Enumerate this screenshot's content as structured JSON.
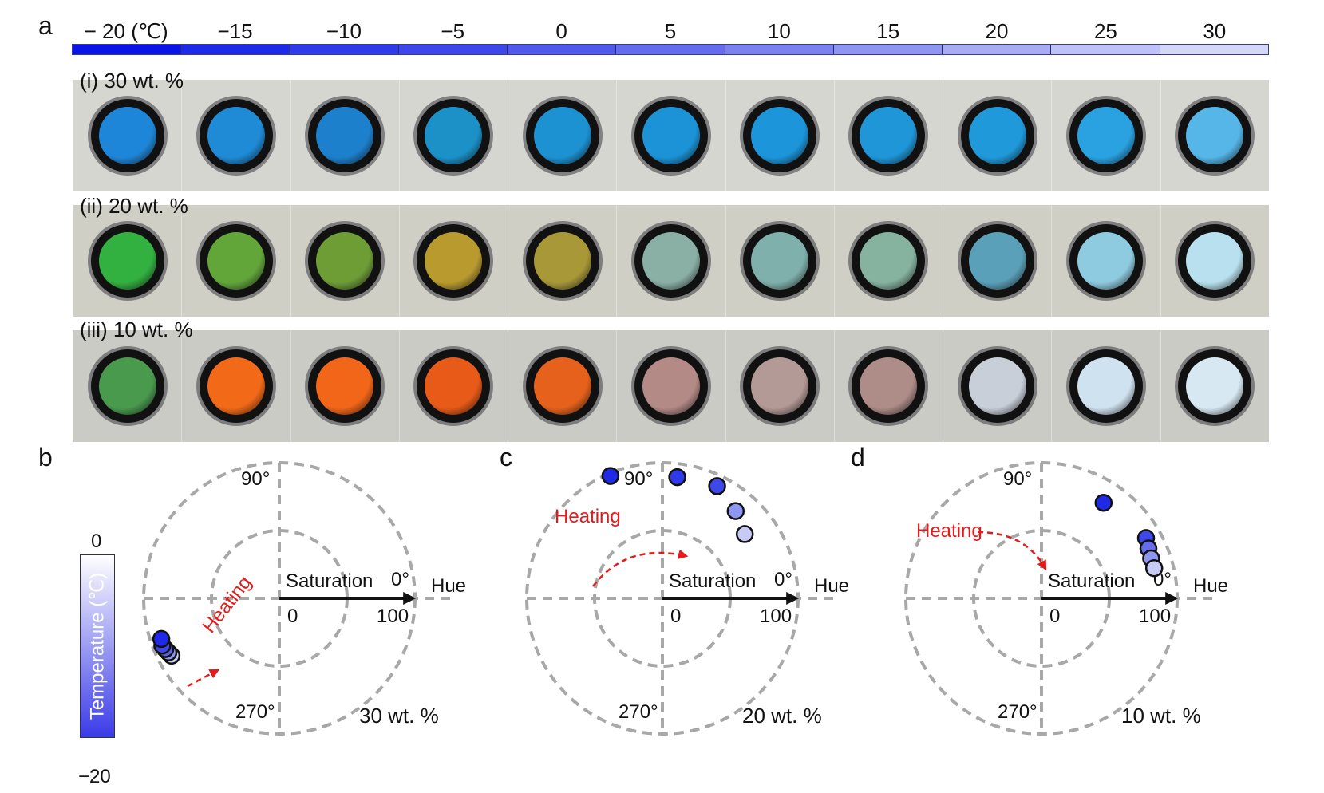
{
  "figure": {
    "panel_letters": {
      "a": "a",
      "b": "b",
      "c": "c",
      "d": "d"
    },
    "temperature_bar": {
      "labels": [
        "− 20 (℃)",
        "−15",
        "−10",
        "−5",
        "0",
        "5",
        "10",
        "15",
        "20",
        "25",
        "30"
      ],
      "colors": [
        "#0a14e6",
        "#1f2ae8",
        "#2f3ae9",
        "#3e48ea",
        "#5059ec",
        "#656dee",
        "#7a82f0",
        "#8f96f2",
        "#a7acf4",
        "#bec2f7",
        "#d4d7fa"
      ]
    },
    "rows": [
      {
        "label": "(i) 30 wt. %",
        "background": "#d6d6d0",
        "sample_colors": [
          "#1e86d8",
          "#1f8ad6",
          "#1d80cc",
          "#1c91c8",
          "#1d92d2",
          "#1b93d6",
          "#1c95da",
          "#1f96d8",
          "#2099da",
          "#2aa2e2",
          "#56b6e8"
        ]
      },
      {
        "label": "(ii) 20 wt. %",
        "background": "#cfcfc6",
        "sample_colors": [
          "#32b040",
          "#62a63a",
          "#6e9d36",
          "#b89a2e",
          "#a89838",
          "#8ab0a6",
          "#80b0ac",
          "#86b2a0",
          "#5aa0b8",
          "#8ecae0",
          "#b8e0ee"
        ]
      },
      {
        "label": "(iii) 10 wt. %",
        "background": "#c9cbc4",
        "sample_colors": [
          "#4a9a4e",
          "#f26a18",
          "#f2661a",
          "#e85a18",
          "#e6621c",
          "#b48a86",
          "#b49a96",
          "#ae8c88",
          "#c8cfd8",
          "#cfe2f0",
          "#d8e8f2"
        ]
      }
    ],
    "polar_plots": [
      {
        "concentration_label": "30 wt. %",
        "angle_90": "90°",
        "angle_0": "0°",
        "angle_270": "270°",
        "axis_label_saturation": "Saturation",
        "axis_label_hue": "Hue",
        "tick_0": "0",
        "tick_100": "100",
        "arrow_label": "Heating",
        "points": [
          {
            "hue_deg": 208,
            "saturation": 90,
            "color": "#c8caf6"
          },
          {
            "hue_deg": 206,
            "saturation": 91,
            "color": "#8f96f2"
          },
          {
            "hue_deg": 204,
            "saturation": 92,
            "color": "#5a62ec"
          },
          {
            "hue_deg": 202,
            "saturation": 93,
            "color": "#3e48ea"
          },
          {
            "hue_deg": 199,
            "saturation": 92,
            "color": "#1f2ae8"
          }
        ]
      },
      {
        "concentration_label": "20 wt. %",
        "angle_90": "90°",
        "angle_0": "0°",
        "angle_270": "270°",
        "axis_label_saturation": "Saturation",
        "axis_label_hue": "Hue",
        "tick_0": "0",
        "tick_100": "100",
        "arrow_label": "Heating",
        "points": [
          {
            "hue_deg": 113,
            "saturation": 98,
            "color": "#1f2ae8"
          },
          {
            "hue_deg": 83,
            "saturation": 90,
            "color": "#2f3ae9"
          },
          {
            "hue_deg": 64,
            "saturation": 92,
            "color": "#3e48ea"
          },
          {
            "hue_deg": 50,
            "saturation": 84,
            "color": "#8f96f2"
          },
          {
            "hue_deg": 38,
            "saturation": 77,
            "color": "#c8caf6"
          }
        ]
      },
      {
        "concentration_label": "10 wt. %",
        "angle_90": "90°",
        "angle_0": "0°",
        "angle_270": "270°",
        "axis_label_saturation": "Saturation",
        "axis_label_hue": "Hue",
        "tick_0": "0",
        "tick_100": "100",
        "arrow_label": "Heating",
        "points": [
          {
            "hue_deg": 57,
            "saturation": 84,
            "color": "#1f2ae8"
          },
          {
            "hue_deg": 30,
            "saturation": 89,
            "color": "#3e48ea"
          },
          {
            "hue_deg": 25,
            "saturation": 87,
            "color": "#656dee"
          },
          {
            "hue_deg": 20,
            "saturation": 86,
            "color": "#8f96f2"
          },
          {
            "hue_deg": 15,
            "saturation": 86,
            "color": "#c8caf6"
          }
        ]
      }
    ],
    "colorbar": {
      "title": "Temperature (℃)",
      "top_label": "0",
      "bottom_label": "−20",
      "top_color": "#ffffff",
      "bottom_color": "#3a3ae8"
    }
  }
}
